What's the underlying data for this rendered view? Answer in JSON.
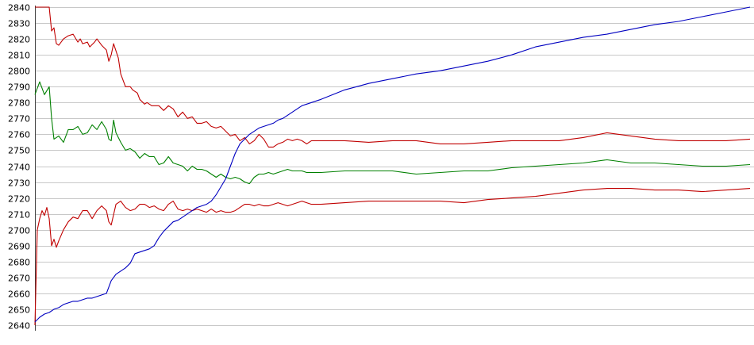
{
  "chart_data": {
    "type": "line",
    "title": "",
    "xlabel": "",
    "ylabel": "",
    "ylim": [
      2640,
      2840
    ],
    "yticks": [
      2640,
      2650,
      2660,
      2670,
      2680,
      2690,
      2700,
      2710,
      2720,
      2730,
      2740,
      2750,
      2760,
      2770,
      2780,
      2790,
      2800,
      2810,
      2820,
      2830,
      2840
    ],
    "ytick_labels": [
      "2640",
      "2650",
      "2660",
      "2670",
      "2680",
      "2690",
      "2700",
      "2710",
      "2720",
      "2730",
      "2740",
      "2750",
      "2760",
      "2770",
      "2780",
      "2790",
      "2800",
      "2810",
      "2820",
      "2830",
      "2840"
    ],
    "xlim": [
      0,
      300
    ],
    "grid": "horizontal",
    "colors": {
      "upper_band": "#c00000",
      "middle": "#008000",
      "lower_band": "#c00000",
      "rising": "#0000c0",
      "grid": "#c8c8c8",
      "axis": "#404040"
    },
    "series": [
      {
        "key": "upper_band",
        "x": [
          0,
          6,
          7,
          8,
          9,
          10,
          12,
          14,
          16,
          18,
          19,
          20,
          22,
          23,
          25,
          26,
          28,
          30,
          31,
          32,
          33,
          35,
          36,
          38,
          40,
          41,
          43,
          44,
          46,
          47,
          49,
          52,
          54,
          56,
          58,
          60,
          62,
          64,
          66,
          68,
          70,
          72,
          74,
          76,
          78,
          80,
          82,
          84,
          86,
          88,
          90,
          92,
          94,
          96,
          98,
          100,
          102,
          104,
          106,
          108,
          110,
          112,
          114,
          116,
          118,
          120,
          130,
          140,
          150,
          160,
          170,
          180,
          190,
          200,
          210,
          220,
          230,
          240,
          250,
          260,
          270,
          280,
          290,
          300
        ],
        "y": [
          2840,
          2840,
          2825,
          2827,
          2817,
          2816,
          2820,
          2822,
          2823,
          2818,
          2820,
          2817,
          2818,
          2815,
          2818,
          2820,
          2816,
          2813,
          2806,
          2810,
          2817,
          2808,
          2798,
          2790,
          2790,
          2788,
          2786,
          2782,
          2779,
          2780,
          2778,
          2778,
          2775,
          2778,
          2776,
          2771,
          2774,
          2770,
          2771,
          2767,
          2767,
          2768,
          2765,
          2764,
          2765,
          2762,
          2759,
          2760,
          2756,
          2758,
          2754,
          2756,
          2760,
          2757,
          2752,
          2752,
          2754,
          2755,
          2757,
          2756,
          2757,
          2756,
          2754,
          2756,
          2756,
          2756,
          2756,
          2755,
          2756,
          2756,
          2754,
          2754,
          2755,
          2756,
          2756,
          2756,
          2758,
          2761,
          2759,
          2757,
          2756,
          2756,
          2756,
          2757
        ]
      },
      {
        "key": "middle",
        "x": [
          0,
          2,
          4,
          6,
          7,
          8,
          10,
          12,
          14,
          16,
          18,
          20,
          22,
          24,
          26,
          28,
          30,
          31,
          32,
          33,
          34,
          36,
          38,
          40,
          42,
          44,
          46,
          48,
          50,
          52,
          54,
          56,
          58,
          60,
          62,
          64,
          66,
          68,
          70,
          72,
          74,
          76,
          78,
          80,
          82,
          84,
          86,
          88,
          90,
          92,
          94,
          96,
          98,
          100,
          102,
          104,
          106,
          108,
          110,
          112,
          114,
          116,
          118,
          120,
          130,
          140,
          150,
          160,
          170,
          180,
          190,
          200,
          210,
          220,
          230,
          240,
          250,
          260,
          270,
          280,
          290,
          300
        ],
        "y": [
          2785,
          2793,
          2785,
          2790,
          2770,
          2757,
          2759,
          2755,
          2763,
          2763,
          2765,
          2760,
          2761,
          2766,
          2763,
          2768,
          2763,
          2757,
          2756,
          2769,
          2761,
          2755,
          2750,
          2751,
          2749,
          2745,
          2748,
          2746,
          2746,
          2741,
          2742,
          2746,
          2742,
          2741,
          2740,
          2737,
          2740,
          2738,
          2738,
          2737,
          2735,
          2733,
          2735,
          2733,
          2732,
          2733,
          2732,
          2730,
          2729,
          2733,
          2735,
          2735,
          2736,
          2735,
          2736,
          2737,
          2738,
          2737,
          2737,
          2737,
          2736,
          2736,
          2736,
          2736,
          2737,
          2737,
          2737,
          2735,
          2736,
          2737,
          2737,
          2739,
          2740,
          2741,
          2742,
          2744,
          2742,
          2742,
          2741,
          2740,
          2740,
          2741
        ]
      },
      {
        "key": "lower_band",
        "x": [
          0,
          1,
          2,
          3,
          4,
          5,
          6,
          7,
          8,
          9,
          10,
          12,
          14,
          16,
          18,
          20,
          22,
          24,
          26,
          28,
          30,
          31,
          32,
          34,
          36,
          38,
          40,
          42,
          44,
          46,
          48,
          50,
          52,
          54,
          56,
          58,
          60,
          62,
          64,
          66,
          68,
          70,
          72,
          74,
          76,
          78,
          80,
          82,
          84,
          86,
          88,
          90,
          92,
          94,
          96,
          98,
          100,
          102,
          104,
          106,
          108,
          110,
          112,
          114,
          116,
          118,
          120,
          130,
          140,
          150,
          160,
          170,
          180,
          190,
          200,
          210,
          220,
          230,
          240,
          250,
          260,
          270,
          280,
          290,
          300
        ],
        "y": [
          2640,
          2700,
          2707,
          2712,
          2709,
          2714,
          2707,
          2690,
          2694,
          2689,
          2693,
          2700,
          2705,
          2708,
          2707,
          2712,
          2712,
          2707,
          2712,
          2715,
          2712,
          2705,
          2703,
          2716,
          2718,
          2714,
          2712,
          2713,
          2716,
          2716,
          2714,
          2715,
          2713,
          2712,
          2716,
          2718,
          2713,
          2712,
          2713,
          2712,
          2713,
          2712,
          2711,
          2713,
          2711,
          2712,
          2711,
          2711,
          2712,
          2714,
          2716,
          2716,
          2715,
          2716,
          2715,
          2715,
          2716,
          2717,
          2716,
          2715,
          2716,
          2717,
          2718,
          2717,
          2716,
          2716,
          2716,
          2717,
          2718,
          2718,
          2718,
          2718,
          2717,
          2719,
          2720,
          2721,
          2723,
          2725,
          2726,
          2726,
          2725,
          2725,
          2724,
          2725,
          2726
        ]
      },
      {
        "key": "rising",
        "x": [
          0,
          2,
          4,
          6,
          8,
          10,
          12,
          14,
          16,
          18,
          20,
          22,
          24,
          26,
          28,
          30,
          32,
          34,
          36,
          38,
          40,
          42,
          44,
          46,
          48,
          50,
          52,
          54,
          56,
          58,
          60,
          62,
          64,
          66,
          68,
          70,
          72,
          74,
          76,
          78,
          80,
          82,
          84,
          86,
          88,
          90,
          92,
          94,
          96,
          98,
          100,
          102,
          104,
          106,
          108,
          110,
          112,
          114,
          116,
          118,
          120,
          125,
          130,
          135,
          140,
          150,
          160,
          170,
          180,
          190,
          200,
          210,
          220,
          230,
          240,
          250,
          260,
          270,
          280,
          290,
          300
        ],
        "y": [
          2642,
          2645,
          2647,
          2648,
          2650,
          2651,
          2653,
          2654,
          2655,
          2655,
          2656,
          2657,
          2657,
          2658,
          2659,
          2660,
          2668,
          2672,
          2674,
          2676,
          2679,
          2685,
          2686,
          2687,
          2688,
          2690,
          2695,
          2699,
          2702,
          2705,
          2706,
          2708,
          2710,
          2712,
          2714,
          2715,
          2716,
          2718,
          2722,
          2727,
          2732,
          2740,
          2748,
          2754,
          2757,
          2760,
          2762,
          2764,
          2765,
          2766,
          2767,
          2769,
          2770,
          2772,
          2774,
          2776,
          2778,
          2779,
          2780,
          2781,
          2782,
          2785,
          2788,
          2790,
          2792,
          2795,
          2798,
          2800,
          2803,
          2806,
          2810,
          2815,
          2818,
          2821,
          2823,
          2826,
          2829,
          2831,
          2834,
          2837,
          2840
        ]
      }
    ]
  }
}
